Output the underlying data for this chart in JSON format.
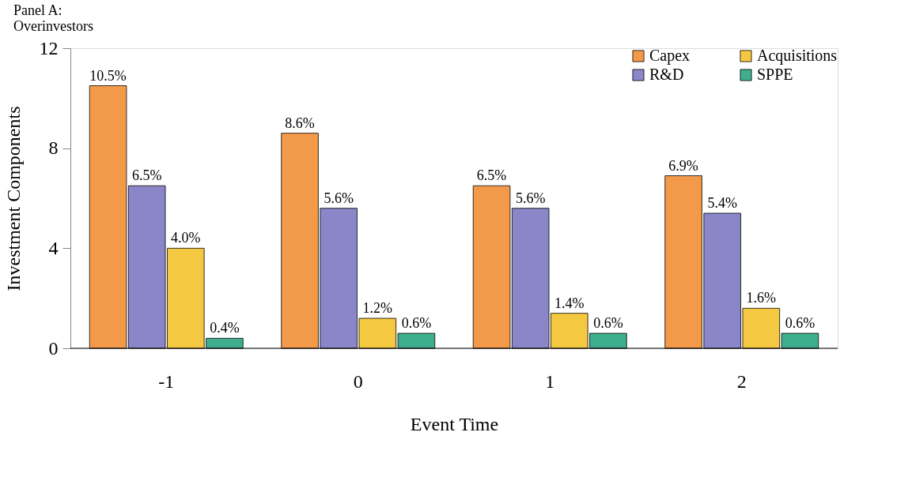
{
  "chart_data": {
    "type": "bar",
    "title": [
      "Panel A:",
      "Overinvestors"
    ],
    "xlabel": "Event Time",
    "ylabel": "Investment Components",
    "categories": [
      "-1",
      "0",
      "1",
      "2"
    ],
    "series": [
      {
        "name": "Capex",
        "color": "#f39a4a",
        "values": [
          10.5,
          8.6,
          6.5,
          6.9
        ],
        "value_labels": [
          "10.5%",
          "8.6%",
          "6.5%",
          "6.9%"
        ]
      },
      {
        "name": "R&D",
        "color": "#8a86c8",
        "values": [
          6.5,
          5.6,
          5.6,
          5.4
        ],
        "value_labels": [
          "6.5%",
          "5.6%",
          "5.6%",
          "5.4%"
        ]
      },
      {
        "name": "Acquisitions",
        "color": "#f5c842",
        "values": [
          4.0,
          1.2,
          1.4,
          1.6
        ],
        "value_labels": [
          "4.0%",
          "1.2%",
          "1.4%",
          "1.6%"
        ]
      },
      {
        "name": "SPPE",
        "color": "#3fae8c",
        "values": [
          0.4,
          0.6,
          0.6,
          0.6
        ],
        "value_labels": [
          "0.4%",
          "0.6%",
          "0.6%",
          "0.6%"
        ]
      }
    ],
    "ylim": [
      0,
      12
    ],
    "yticks": [
      0,
      4,
      8,
      12
    ],
    "grid": false,
    "legend": "top right"
  }
}
